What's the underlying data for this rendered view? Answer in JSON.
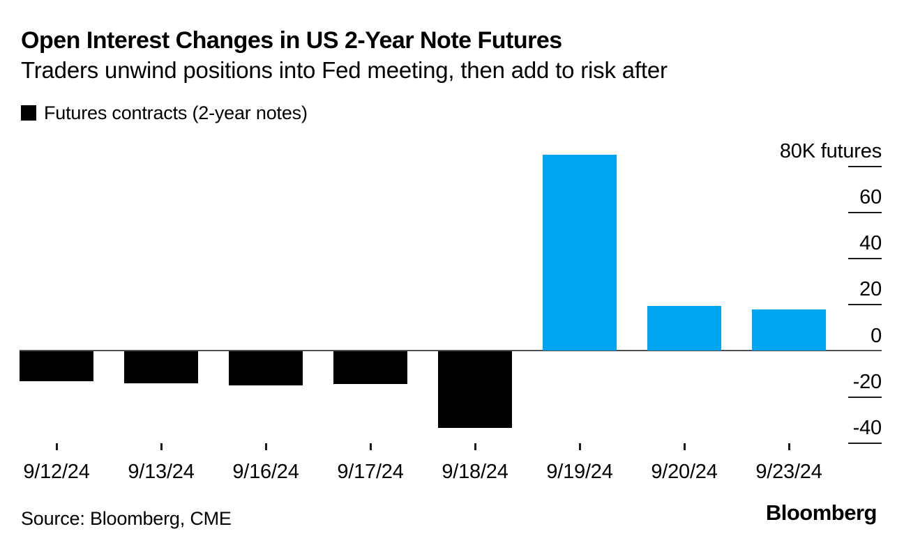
{
  "header": {
    "title": "Open Interest Changes in US 2-Year Note Futures",
    "subtitle": "Traders unwind positions into Fed meeting, then add to risk after"
  },
  "legend": {
    "label": "Futures contracts (2-year notes)",
    "swatch_color": "#000000"
  },
  "chart_data": {
    "type": "bar",
    "title": "Open Interest Changes in US 2-Year Note Futures",
    "subtitle": "Traders unwind positions into Fed meeting, then add to risk after",
    "series_name": "Futures contracts (2-year notes)",
    "categories": [
      "9/12/24",
      "9/13/24",
      "9/16/24",
      "9/17/24",
      "9/18/24",
      "9/19/24",
      "9/20/24",
      "9/23/24"
    ],
    "values": [
      -13,
      -14,
      -15,
      -14.5,
      -33.5,
      85,
      19.5,
      18
    ],
    "unit": "K futures",
    "baseline": 0,
    "grid": "none",
    "legend_position": "top-left",
    "y_axis": {
      "side": "right",
      "ylim": [
        -48,
        92
      ],
      "ticks": [
        {
          "value": 80,
          "label": "80K futures"
        },
        {
          "value": 60,
          "label": "60"
        },
        {
          "value": 40,
          "label": "40"
        },
        {
          "value": 20,
          "label": "20"
        },
        {
          "value": 0,
          "label": "0"
        },
        {
          "value": -20,
          "label": "-20"
        },
        {
          "value": -40,
          "label": "-40"
        }
      ]
    },
    "colors": {
      "positive": "#00a5f2",
      "negative": "#000000",
      "axis_line": "#4d4d4d"
    }
  },
  "footer": {
    "source": "Source: Bloomberg, CME",
    "brand": "Bloomberg"
  }
}
